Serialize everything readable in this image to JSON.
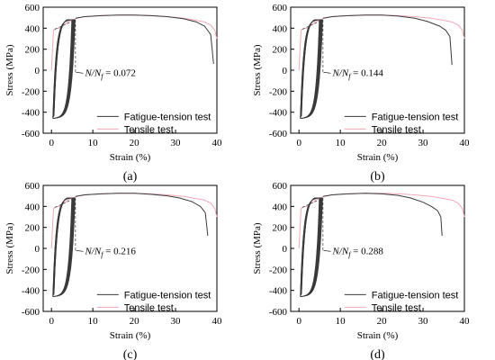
{
  "colors": {
    "fatigue": "#3a3a3a",
    "tensile": "#f0a8b8",
    "axis": "#000000",
    "annotation_arrow": "#000000"
  },
  "chart_data": [
    {
      "type": "line",
      "panel_label": "(a)",
      "xlabel": "Strain (%)",
      "ylabel": "Stress (MPa)",
      "xlim": [
        -2,
        40
      ],
      "ylim": [
        -600,
        600
      ],
      "xticks": [
        0,
        10,
        20,
        30,
        40
      ],
      "yticks": [
        600,
        400,
        200,
        0,
        -200,
        -400,
        -600
      ],
      "annotation": {
        "prefix": "N/N",
        "sub": "f",
        "value": "0.072",
        "target_strain": 5.5,
        "target_stress": -20
      },
      "legend": [
        "Fatigue-tension test",
        "Tensile test"
      ],
      "series": [
        {
          "name": "Fatigue-tension test",
          "fatigue_strain_max": 5.8,
          "x": [
            5.8,
            8,
            12,
            16,
            20,
            24,
            28,
            32,
            35,
            37,
            38.5,
            39.2
          ],
          "y": [
            495,
            510,
            520,
            525,
            525,
            520,
            510,
            490,
            460,
            420,
            340,
            60
          ]
        },
        {
          "name": "Tensile test",
          "x": [
            0,
            0.5,
            1,
            2,
            4,
            6,
            8,
            12,
            16,
            20,
            24,
            28,
            32,
            35,
            37,
            38.5,
            39.5,
            40
          ],
          "y": [
            0,
            380,
            395,
            400,
            460,
            495,
            510,
            520,
            525,
            525,
            520,
            510,
            495,
            475,
            460,
            430,
            380,
            300
          ]
        }
      ]
    },
    {
      "type": "line",
      "panel_label": "(b)",
      "xlabel": "Strain (%)",
      "ylabel": "Stress (MPa)",
      "xlim": [
        -2,
        40
      ],
      "ylim": [
        -600,
        600
      ],
      "xticks": [
        0,
        10,
        20,
        30,
        40
      ],
      "yticks": [
        600,
        400,
        200,
        0,
        -200,
        -400,
        -600
      ],
      "annotation": {
        "prefix": "N/N",
        "sub": "f",
        "value": "0.144",
        "target_strain": 5.5,
        "target_stress": -20
      },
      "legend": [
        "Fatigue-tension test",
        "Tensile test"
      ],
      "series": [
        {
          "name": "Fatigue-tension test",
          "fatigue_strain_max": 5.8,
          "x": [
            5.8,
            8,
            12,
            16,
            20,
            24,
            28,
            31,
            34,
            35.5,
            36.5,
            37
          ],
          "y": [
            495,
            510,
            520,
            525,
            525,
            515,
            495,
            465,
            420,
            380,
            320,
            50
          ]
        },
        {
          "name": "Tensile test",
          "x": [
            0,
            0.5,
            1,
            2,
            4,
            6,
            8,
            12,
            16,
            20,
            24,
            28,
            32,
            35,
            37,
            38.5,
            39.5,
            40
          ],
          "y": [
            0,
            380,
            395,
            400,
            460,
            495,
            510,
            520,
            525,
            525,
            520,
            510,
            495,
            475,
            460,
            430,
            380,
            300
          ]
        }
      ]
    },
    {
      "type": "line",
      "panel_label": "(c)",
      "xlabel": "Strain (%)",
      "ylabel": "Stress (MPa)",
      "xlim": [
        -2,
        40
      ],
      "ylim": [
        -600,
        600
      ],
      "xticks": [
        0,
        10,
        20,
        30,
        40
      ],
      "yticks": [
        600,
        400,
        200,
        0,
        -200,
        -400,
        -600
      ],
      "annotation": {
        "prefix": "N/N",
        "sub": "f",
        "value": "0.216",
        "target_strain": 5.5,
        "target_stress": -20
      },
      "legend": [
        "Fatigue-tension test",
        "Tensile test"
      ],
      "series": [
        {
          "name": "Fatigue-tension test",
          "fatigue_strain_max": 5.8,
          "x": [
            5.8,
            8,
            12,
            16,
            20,
            24,
            28,
            31,
            34,
            36,
            37.2,
            37.8
          ],
          "y": [
            495,
            510,
            520,
            525,
            525,
            515,
            500,
            480,
            445,
            400,
            340,
            120
          ]
        },
        {
          "name": "Tensile test",
          "x": [
            0,
            0.5,
            1,
            2,
            4,
            6,
            8,
            12,
            16,
            20,
            24,
            28,
            32,
            35,
            37,
            38.5,
            39.5,
            40
          ],
          "y": [
            0,
            380,
            395,
            400,
            460,
            495,
            510,
            520,
            525,
            525,
            520,
            510,
            495,
            475,
            460,
            430,
            380,
            300
          ]
        }
      ]
    },
    {
      "type": "line",
      "panel_label": "(d)",
      "xlabel": "Strain (%)",
      "ylabel": "Stress (MPa)",
      "xlim": [
        -2,
        40
      ],
      "ylim": [
        -600,
        600
      ],
      "xticks": [
        0,
        10,
        20,
        30,
        40
      ],
      "yticks": [
        600,
        400,
        200,
        0,
        -200,
        -400,
        -600
      ],
      "annotation": {
        "prefix": "N/N",
        "sub": "f",
        "value": "0.288",
        "target_strain": 5.5,
        "target_stress": -20
      },
      "legend": [
        "Fatigue-tension test",
        "Tensile test"
      ],
      "series": [
        {
          "name": "Fatigue-tension test",
          "fatigue_strain_max": 5.8,
          "x": [
            5.8,
            8,
            12,
            16,
            20,
            24,
            27,
            30,
            32,
            33.5,
            34.3,
            34.6
          ],
          "y": [
            495,
            510,
            520,
            525,
            520,
            505,
            480,
            440,
            400,
            360,
            300,
            120
          ]
        },
        {
          "name": "Tensile test",
          "x": [
            0,
            0.5,
            1,
            2,
            4,
            6,
            8,
            12,
            16,
            20,
            24,
            28,
            32,
            35,
            37,
            38.5,
            39.5,
            40
          ],
          "y": [
            0,
            380,
            395,
            400,
            460,
            495,
            510,
            520,
            525,
            525,
            520,
            510,
            495,
            475,
            460,
            430,
            380,
            300
          ]
        }
      ]
    }
  ]
}
